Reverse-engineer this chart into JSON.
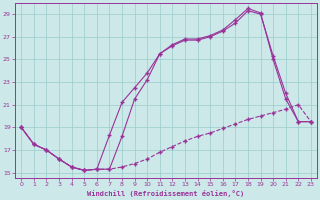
{
  "xlabel": "Windchill (Refroidissement éolien,°C)",
  "bg_color": "#cce8e8",
  "grid_color": "#99cccc",
  "line_color": "#993399",
  "xlim": [
    -0.5,
    23.5
  ],
  "ylim": [
    14.5,
    30.0
  ],
  "yticks": [
    15,
    17,
    19,
    21,
    23,
    25,
    27,
    29
  ],
  "xticks": [
    0,
    1,
    2,
    3,
    4,
    5,
    6,
    7,
    8,
    9,
    10,
    11,
    12,
    13,
    14,
    15,
    16,
    17,
    18,
    19,
    20,
    21,
    22,
    23
  ],
  "curve1_x": [
    0,
    1,
    2,
    3,
    4,
    5,
    6,
    7,
    8,
    9,
    10,
    11,
    12,
    13,
    14,
    15,
    16,
    17,
    18,
    19,
    20,
    21,
    22,
    23
  ],
  "curve1_y": [
    19,
    17.5,
    17.0,
    16.2,
    15.5,
    15.2,
    15.3,
    18.3,
    21.2,
    22.5,
    23.8,
    25.5,
    26.2,
    26.7,
    26.7,
    27.0,
    27.5,
    28.2,
    29.3,
    29.0,
    25.3,
    22.0,
    19.5,
    19.5
  ],
  "curve2_x": [
    0,
    1,
    2,
    3,
    4,
    5,
    6,
    7,
    8,
    9,
    10,
    11,
    12,
    13,
    14,
    15,
    16,
    17,
    18,
    19,
    20,
    21,
    22,
    23
  ],
  "curve2_y": [
    19,
    17.5,
    17.0,
    16.2,
    15.5,
    15.2,
    15.3,
    15.3,
    18.2,
    21.5,
    23.2,
    25.5,
    26.3,
    26.8,
    26.8,
    27.1,
    27.6,
    28.5,
    29.5,
    29.1,
    25.0,
    21.5,
    19.5,
    19.5
  ],
  "curve3_x": [
    0,
    1,
    2,
    3,
    4,
    5,
    6,
    7,
    8,
    9,
    10,
    11,
    12,
    13,
    14,
    15,
    16,
    17,
    18,
    19,
    20,
    21,
    22,
    23
  ],
  "curve3_y": [
    19,
    17.5,
    17.0,
    16.2,
    15.5,
    15.2,
    15.3,
    15.3,
    15.5,
    15.8,
    16.2,
    16.8,
    17.3,
    17.8,
    18.2,
    18.5,
    18.9,
    19.3,
    19.7,
    20.0,
    20.3,
    20.6,
    21.0,
    19.5
  ]
}
